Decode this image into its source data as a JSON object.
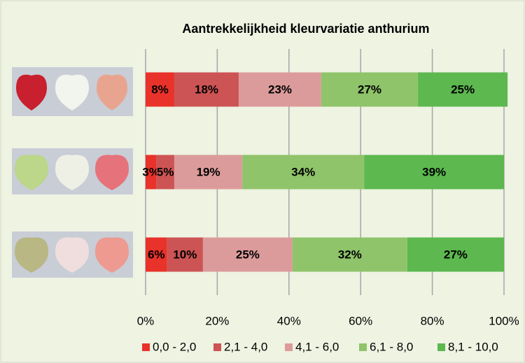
{
  "chart_data": {
    "type": "stacked-bar-horizontal",
    "title": "Aantrekkelijkheid kleurvariatie anthurium",
    "categories": [
      null,
      null,
      null
    ],
    "series": [
      {
        "name": "0,0 - 2,0",
        "color": "#e8322a",
        "values": [
          8,
          3,
          6
        ],
        "value_labels": [
          "8%",
          "3%",
          "6%"
        ]
      },
      {
        "name": "2,1 - 4,0",
        "color": "#cd5454",
        "values": [
          18,
          5,
          10
        ],
        "value_labels": [
          "18%",
          "5%",
          "10%"
        ]
      },
      {
        "name": "4,1 - 6,0",
        "color": "#dc9b9b",
        "values": [
          23,
          19,
          25
        ],
        "value_labels": [
          "23%",
          "19%",
          "25%"
        ]
      },
      {
        "name": "6,1 - 8,0",
        "color": "#8fc46a",
        "values": [
          27,
          34,
          32
        ],
        "value_labels": [
          "27%",
          "34%",
          "32%"
        ]
      },
      {
        "name": "8,1 - 10,0",
        "color": "#5cb84f",
        "values": [
          25,
          39,
          27
        ],
        "value_labels": [
          "25%",
          "39%",
          "27%"
        ]
      }
    ],
    "xlim": [
      0,
      100
    ],
    "xticks": [
      {
        "value": 0,
        "label": "0%"
      },
      {
        "value": 20,
        "label": "20%"
      },
      {
        "value": 40,
        "label": "40%"
      },
      {
        "value": 60,
        "label": "60%"
      },
      {
        "value": 80,
        "label": "80%"
      },
      {
        "value": 100,
        "label": "100%"
      }
    ],
    "grid": true,
    "legend": "bottom"
  }
}
